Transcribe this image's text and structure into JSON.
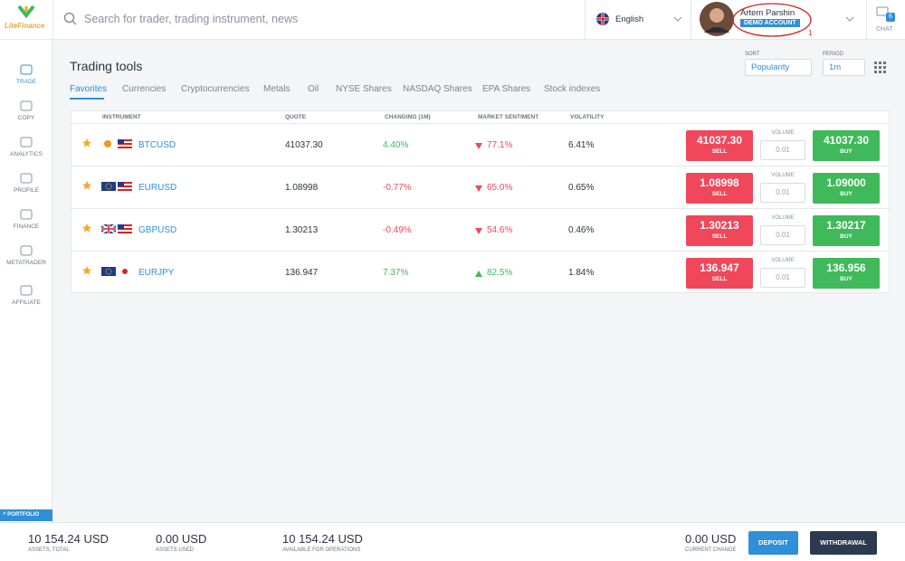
{
  "logo": "LiteFinance",
  "search_placeholder": "Search for trader, trading instrument, news",
  "language": "English",
  "user": {
    "name": "Artem Parshin",
    "account": "DEMO ACCOUNT",
    "annotation": "1"
  },
  "chat": {
    "label": "CHAT",
    "badge": "6"
  },
  "sidebar": [
    "TRADE",
    "COPY",
    "ANALYTICS",
    "PROFILE",
    "FINANCE",
    "METATRADER",
    "AFFILIATE"
  ],
  "page_title": "Trading tools",
  "sort": {
    "label": "SORT",
    "value": "Popularity"
  },
  "period": {
    "label": "PERIOD",
    "value": "1m"
  },
  "tabs": [
    "Favorites",
    "Currencies",
    "Cryptocurrencies",
    "Metals",
    "Oil",
    "NYSE Shares",
    "NASDAQ Shares",
    "EPA Shares",
    "Stock indexes"
  ],
  "table": {
    "headers": [
      "INSTRUMENT",
      "QUOTE",
      "CHANGING (1M)",
      "MARKET SENTIMENT",
      "VOLATILITY"
    ],
    "sell_label": "SELL",
    "buy_label": "BUY",
    "volume_label": "VOLUME",
    "rows": [
      {
        "instrument": "BTCUSD",
        "quote": "41037.30",
        "change": "4.40%",
        "sentiment": "77.1%",
        "volatility": "6.41%",
        "sell": "41037.30",
        "buy": "41037.30",
        "volume": "0.01"
      },
      {
        "instrument": "EURUSD",
        "quote": "1.08998",
        "change": "-0.77%",
        "sentiment": "65.0%",
        "volatility": "0.65%",
        "sell": "1.08998",
        "buy": "1.09000",
        "volume": "0.01"
      },
      {
        "instrument": "GBPUSD",
        "quote": "1.30213",
        "change": "-0.49%",
        "sentiment": "54.6%",
        "volatility": "0.46%",
        "sell": "1.30213",
        "buy": "1.30217",
        "volume": "0.01"
      },
      {
        "instrument": "EURJPY",
        "quote": "136.947",
        "change": "7.37%",
        "sentiment": "82.5%",
        "volatility": "1.84%",
        "sell": "136.947",
        "buy": "136.956",
        "volume": "0.01"
      }
    ]
  },
  "portfolio": "PORTFOLIO",
  "footer": [
    {
      "value": "10 154.24 USD",
      "label": "ASSETS, TOTAL"
    },
    {
      "value": "0.00 USD",
      "label": "ASSETS USED"
    },
    {
      "value": "10 154.24 USD",
      "label": "AVAILABLE FOR OPERATIONS"
    },
    {
      "value": "0.00 USD",
      "label": "CURRENT CHANGE"
    }
  ],
  "buttons": [
    "DEPOSIT",
    "WITHDRAWAL"
  ]
}
